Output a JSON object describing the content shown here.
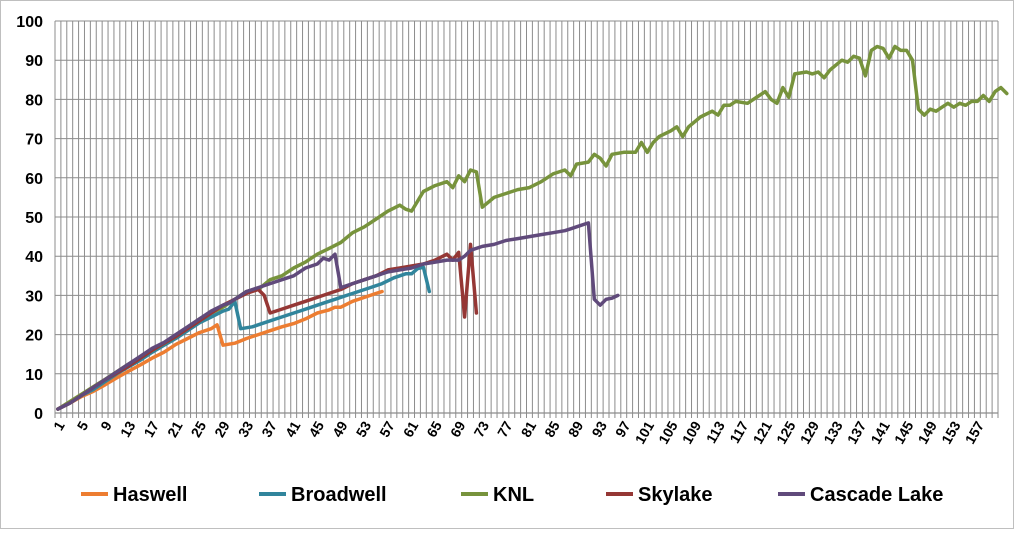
{
  "chart_data": {
    "type": "line",
    "title": "",
    "xlabel": "",
    "ylabel": "",
    "ylim": [
      0,
      100
    ],
    "yticks": [
      0,
      10,
      20,
      30,
      40,
      50,
      60,
      70,
      80,
      90,
      100
    ],
    "xrange": [
      1,
      160
    ],
    "xtick_labels": [
      "1",
      "5",
      "9",
      "13",
      "17",
      "21",
      "25",
      "29",
      "33",
      "37",
      "41",
      "45",
      "49",
      "53",
      "57",
      "61",
      "65",
      "69",
      "73",
      "77",
      "81",
      "85",
      "89",
      "93",
      "97",
      "101",
      "105",
      "109",
      "113",
      "117",
      "121",
      "125",
      "129",
      "133",
      "137",
      "141",
      "145",
      "149",
      "153",
      "157"
    ],
    "grid": true,
    "legend_position": "bottom",
    "series": [
      {
        "name": "Haswell",
        "color": "#ed7d31",
        "points": [
          [
            1,
            1
          ],
          [
            3,
            2.5
          ],
          [
            5,
            4.2
          ],
          [
            7,
            5.5
          ],
          [
            9,
            7.2
          ],
          [
            11,
            9
          ],
          [
            13,
            10.7
          ],
          [
            15,
            12.3
          ],
          [
            17,
            14
          ],
          [
            19,
            15.5
          ],
          [
            21,
            17.5
          ],
          [
            23,
            19
          ],
          [
            25,
            20.5
          ],
          [
            27,
            21.5
          ],
          [
            28,
            22.5
          ],
          [
            29,
            17.3
          ],
          [
            31,
            17.8
          ],
          [
            33,
            19
          ],
          [
            35,
            20
          ],
          [
            37,
            21
          ],
          [
            39,
            22
          ],
          [
            41,
            22.8
          ],
          [
            43,
            24
          ],
          [
            45,
            25.5
          ],
          [
            47,
            26.3
          ],
          [
            48,
            27
          ],
          [
            49,
            27
          ],
          [
            51,
            28.5
          ],
          [
            53,
            29.5
          ],
          [
            55,
            30.5
          ],
          [
            56,
            31
          ]
        ]
      },
      {
        "name": "Broadwell",
        "color": "#31859c",
        "points": [
          [
            1,
            1
          ],
          [
            3,
            2.5
          ],
          [
            5,
            4.5
          ],
          [
            7,
            6
          ],
          [
            9,
            8
          ],
          [
            11,
            10
          ],
          [
            13,
            11.8
          ],
          [
            15,
            13.5
          ],
          [
            17,
            15.5
          ],
          [
            19,
            17.3
          ],
          [
            21,
            19
          ],
          [
            23,
            21
          ],
          [
            25,
            23
          ],
          [
            27,
            24.5
          ],
          [
            29,
            26
          ],
          [
            30,
            26.5
          ],
          [
            31,
            28.5
          ],
          [
            32,
            21.5
          ],
          [
            34,
            22
          ],
          [
            36,
            23
          ],
          [
            38,
            24
          ],
          [
            40,
            25
          ],
          [
            42,
            26
          ],
          [
            44,
            27
          ],
          [
            46,
            28
          ],
          [
            48,
            29
          ],
          [
            50,
            30
          ],
          [
            52,
            31
          ],
          [
            54,
            32
          ],
          [
            56,
            33
          ],
          [
            58,
            34.5
          ],
          [
            60,
            35.5
          ],
          [
            61,
            35.5
          ],
          [
            62,
            36.8
          ],
          [
            63,
            37.2
          ],
          [
            64,
            31
          ]
        ]
      },
      {
        "name": "KNL",
        "color": "#77933c",
        "points": [
          [
            1,
            1
          ],
          [
            5,
            4.8
          ],
          [
            9,
            8.6
          ],
          [
            13,
            12.5
          ],
          [
            17,
            16
          ],
          [
            21,
            19.5
          ],
          [
            25,
            24
          ],
          [
            29,
            27
          ],
          [
            33,
            31
          ],
          [
            35,
            31.5
          ],
          [
            37,
            34
          ],
          [
            39,
            35
          ],
          [
            41,
            37
          ],
          [
            43,
            38.5
          ],
          [
            45,
            40.5
          ],
          [
            47,
            42
          ],
          [
            49,
            43.5
          ],
          [
            51,
            46
          ],
          [
            53,
            47.5
          ],
          [
            55,
            49.5
          ],
          [
            57,
            51.5
          ],
          [
            59,
            53
          ],
          [
            60,
            52
          ],
          [
            61,
            51.5
          ],
          [
            63,
            56.5
          ],
          [
            65,
            58
          ],
          [
            67,
            59
          ],
          [
            68,
            57.5
          ],
          [
            69,
            60.5
          ],
          [
            70,
            59
          ],
          [
            71,
            62
          ],
          [
            72,
            61.5
          ],
          [
            73,
            52.5
          ],
          [
            75,
            55
          ],
          [
            77,
            56
          ],
          [
            79,
            57
          ],
          [
            81,
            57.5
          ],
          [
            83,
            59
          ],
          [
            85,
            61
          ],
          [
            87,
            62
          ],
          [
            88,
            60.5
          ],
          [
            89,
            63.5
          ],
          [
            91,
            64
          ],
          [
            92,
            66
          ],
          [
            93,
            65
          ],
          [
            94,
            63
          ],
          [
            95,
            66
          ],
          [
            97,
            66.5
          ],
          [
            99,
            66.5
          ],
          [
            100,
            69
          ],
          [
            101,
            66.5
          ],
          [
            102,
            69
          ],
          [
            103,
            70.5
          ],
          [
            105,
            72
          ],
          [
            106,
            73
          ],
          [
            107,
            70.5
          ],
          [
            108,
            73
          ],
          [
            110,
            75.5
          ],
          [
            112,
            77
          ],
          [
            113,
            76
          ],
          [
            114,
            78.5
          ],
          [
            115,
            78.5
          ],
          [
            116,
            79.5
          ],
          [
            118,
            79
          ],
          [
            120,
            81
          ],
          [
            121,
            82
          ],
          [
            122,
            80
          ],
          [
            123,
            79
          ],
          [
            124,
            83
          ],
          [
            125,
            80.5
          ],
          [
            126,
            86.5
          ],
          [
            128,
            87
          ],
          [
            129,
            86.5
          ],
          [
            130,
            87
          ],
          [
            131,
            85.5
          ],
          [
            132,
            87.5
          ],
          [
            134,
            90
          ],
          [
            135,
            89.5
          ],
          [
            136,
            91
          ],
          [
            137,
            90.5
          ],
          [
            138,
            86
          ],
          [
            139,
            92.5
          ],
          [
            140,
            93.5
          ],
          [
            141,
            93
          ],
          [
            142,
            90.5
          ],
          [
            143,
            93.5
          ],
          [
            144,
            92.5
          ],
          [
            145,
            92.5
          ],
          [
            146,
            90
          ],
          [
            147,
            77.5
          ],
          [
            148,
            76
          ],
          [
            149,
            77.5
          ],
          [
            150,
            77
          ],
          [
            151,
            78
          ],
          [
            152,
            79
          ],
          [
            153,
            78
          ],
          [
            154,
            79
          ],
          [
            155,
            78.5
          ],
          [
            156,
            79.5
          ],
          [
            157,
            79.5
          ],
          [
            158,
            81
          ],
          [
            159,
            79.5
          ],
          [
            160,
            82
          ],
          [
            161,
            83
          ],
          [
            162,
            81.5
          ]
        ]
      },
      {
        "name": "Skylake",
        "color": "#953735",
        "points": [
          [
            1,
            1
          ],
          [
            3,
            2.5
          ],
          [
            5,
            4.5
          ],
          [
            7,
            6.5
          ],
          [
            9,
            8.5
          ],
          [
            11,
            10.2
          ],
          [
            13,
            12
          ],
          [
            15,
            14
          ],
          [
            17,
            16
          ],
          [
            19,
            17.8
          ],
          [
            21,
            19.5
          ],
          [
            23,
            21.5
          ],
          [
            25,
            23.5
          ],
          [
            27,
            25.5
          ],
          [
            29,
            27.5
          ],
          [
            31,
            29
          ],
          [
            33,
            30.5
          ],
          [
            35,
            31.5
          ],
          [
            36,
            30
          ],
          [
            37,
            25.5
          ],
          [
            39,
            26.5
          ],
          [
            41,
            27.5
          ],
          [
            43,
            28.5
          ],
          [
            45,
            29.5
          ],
          [
            47,
            30.5
          ],
          [
            49,
            31.5
          ],
          [
            51,
            33
          ],
          [
            53,
            34
          ],
          [
            55,
            35
          ],
          [
            57,
            36.5
          ],
          [
            59,
            37
          ],
          [
            61,
            37.5
          ],
          [
            63,
            38
          ],
          [
            65,
            39
          ],
          [
            67,
            40.5
          ],
          [
            68,
            39
          ],
          [
            69,
            41
          ],
          [
            70,
            24.5
          ],
          [
            71,
            43
          ],
          [
            72,
            25.5
          ]
        ]
      },
      {
        "name": "Cascade Lake",
        "color": "#604a7b",
        "points": [
          [
            1,
            1
          ],
          [
            3,
            2.5
          ],
          [
            5,
            4.5
          ],
          [
            7,
            6.5
          ],
          [
            9,
            8.5
          ],
          [
            11,
            10.5
          ],
          [
            13,
            12.5
          ],
          [
            15,
            14.5
          ],
          [
            17,
            16.5
          ],
          [
            19,
            18
          ],
          [
            21,
            20
          ],
          [
            23,
            22
          ],
          [
            25,
            24
          ],
          [
            27,
            26
          ],
          [
            29,
            27.5
          ],
          [
            30,
            28
          ],
          [
            31,
            29
          ],
          [
            33,
            31
          ],
          [
            35,
            32
          ],
          [
            37,
            33
          ],
          [
            39,
            34
          ],
          [
            41,
            35
          ],
          [
            43,
            37
          ],
          [
            45,
            38
          ],
          [
            46,
            39.5
          ],
          [
            47,
            39
          ],
          [
            48,
            40.5
          ],
          [
            49,
            32
          ],
          [
            51,
            33
          ],
          [
            53,
            34
          ],
          [
            55,
            35
          ],
          [
            57,
            36
          ],
          [
            59,
            36.5
          ],
          [
            61,
            37
          ],
          [
            63,
            38
          ],
          [
            65,
            38.5
          ],
          [
            67,
            39
          ],
          [
            69,
            39
          ],
          [
            70,
            40
          ],
          [
            71,
            41.5
          ],
          [
            73,
            42.5
          ],
          [
            75,
            43
          ],
          [
            77,
            44
          ],
          [
            79,
            44.5
          ],
          [
            81,
            45
          ],
          [
            83,
            45.5
          ],
          [
            85,
            46
          ],
          [
            87,
            46.5
          ],
          [
            88,
            47
          ],
          [
            89,
            47.5
          ],
          [
            91,
            48.5
          ],
          [
            92,
            29
          ],
          [
            93,
            27.5
          ],
          [
            94,
            29
          ],
          [
            95,
            29.3
          ],
          [
            96,
            30
          ]
        ]
      }
    ]
  }
}
